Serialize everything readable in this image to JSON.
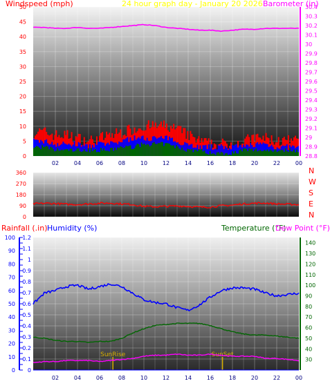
{
  "colors": {
    "wind_gust": "#ff0000",
    "wind_avg": "#0000ff",
    "wind_low": "#006600",
    "barometer": "#ff00ff",
    "wind_dir": "#ff0000",
    "humidity": "#0000ff",
    "temperature": "#006600",
    "dewpoint": "#ff00ff",
    "rainfall": "#0000ff",
    "sun": "#d8b000",
    "title": "#ffff00",
    "label_red": "#ff0000"
  },
  "chart_data": [
    {
      "type": "line",
      "title": "24 hour graph day - January 20 2026",
      "ylabel_left": "Windspeed (mph)",
      "ylabel_right": "Barometer (in)",
      "x_ticks": [
        "02",
        "04",
        "06",
        "08",
        "10",
        "12",
        "14",
        "16",
        "18",
        "20",
        "22",
        "00"
      ],
      "left_ticks": [
        "50",
        "45",
        "40",
        "35",
        "30",
        "25",
        "20",
        "15",
        "10",
        "5",
        "0"
      ],
      "right_ticks": [
        "30.4",
        "30.3",
        "30.2",
        "30.1",
        "30",
        "29.9",
        "29.8",
        "29.7",
        "29.6",
        "29.5",
        "29.4",
        "29.3",
        "29.2",
        "29.1",
        "29",
        "28.9",
        "28.8"
      ],
      "ylim_left": [
        0,
        50
      ],
      "ylim_right": [
        28.8,
        30.4
      ],
      "x": [
        0,
        1,
        2,
        3,
        4,
        5,
        6,
        7,
        8,
        9,
        10,
        11,
        12,
        13,
        14,
        15,
        16,
        17,
        18,
        19,
        20,
        21,
        22,
        23,
        24
      ],
      "series": [
        {
          "name": "Windspeed (mph)",
          "role": "gust",
          "values": [
            8,
            8,
            7,
            7,
            6,
            5,
            6,
            7,
            8,
            9,
            10,
            10,
            10,
            9,
            7,
            5,
            4,
            4,
            4,
            5,
            6,
            6,
            5,
            5,
            5
          ]
        },
        {
          "name": "Windspeed (mph)",
          "role": "avg",
          "values": [
            5,
            5,
            4,
            4,
            4,
            3,
            4,
            4,
            5,
            6,
            6,
            6,
            6,
            5,
            4,
            3,
            3,
            3,
            3,
            3,
            4,
            4,
            3,
            3,
            3
          ]
        },
        {
          "name": "Windspeed (mph)",
          "role": "low",
          "values": [
            3,
            3,
            2,
            2,
            2,
            2,
            2,
            2,
            3,
            3,
            4,
            4,
            4,
            3,
            2,
            2,
            1,
            1,
            1,
            2,
            2,
            2,
            2,
            2,
            2
          ]
        },
        {
          "name": "Barometer (in)",
          "values": [
            30.18,
            30.18,
            30.17,
            30.17,
            30.18,
            30.17,
            30.17,
            30.18,
            30.19,
            30.2,
            30.21,
            30.2,
            30.18,
            30.17,
            30.16,
            30.15,
            30.15,
            30.14,
            30.15,
            30.16,
            30.16,
            30.17,
            30.17,
            30.17,
            30.17
          ]
        }
      ]
    },
    {
      "type": "line",
      "ylabel_right": [
        "N",
        "W",
        "S",
        "E",
        "N"
      ],
      "left_ticks": [
        "360",
        "270",
        "180",
        "90",
        "0"
      ],
      "ylim": [
        0,
        360
      ],
      "x": [
        0,
        1,
        2,
        3,
        4,
        5,
        6,
        7,
        8,
        9,
        10,
        11,
        12,
        13,
        14,
        15,
        16,
        17,
        18,
        19,
        20,
        21,
        22,
        23,
        24
      ],
      "series": [
        {
          "name": "Wind direction",
          "values": [
            105,
            110,
            108,
            102,
            100,
            105,
            110,
            112,
            105,
            100,
            85,
            82,
            85,
            88,
            85,
            78,
            80,
            90,
            95,
            105,
            110,
            112,
            105,
            102,
            98
          ]
        }
      ]
    },
    {
      "type": "line",
      "ylabel_left_1": "Rainfall (.in)",
      "ylabel_left_2": "Humidity (%)",
      "ylabel_right_1": "Temperature (°F)",
      "ylabel_right_2": "Dew Point (°F)",
      "x_ticks": [
        "02",
        "04",
        "06",
        "08",
        "10",
        "12",
        "14",
        "16",
        "18",
        "20",
        "22",
        "00"
      ],
      "rain_ticks": [
        "1.2",
        "1.1",
        "1",
        "0.9",
        "0.8",
        "0.7",
        "0.6",
        "0.5",
        "0.4",
        "0.3",
        "0.2",
        "0.1",
        "0"
      ],
      "hum_ticks": [
        "100",
        "90",
        "80",
        "70",
        "60",
        "50",
        "40",
        "30",
        "20",
        "10",
        "0"
      ],
      "temp_ticks": [
        "140",
        "130",
        "120",
        "110",
        "100",
        "90",
        "80",
        "70",
        "60",
        "50",
        "40",
        "30"
      ],
      "ylim_rain": [
        0,
        1.2
      ],
      "ylim_hum": [
        0,
        100
      ],
      "ylim_temp": [
        20,
        145
      ],
      "annotations": [
        "SunRise",
        "SunSet"
      ],
      "sunrise_hour": 7.2,
      "sunset_hour": 17.1,
      "x": [
        0,
        1,
        2,
        3,
        4,
        5,
        6,
        7,
        8,
        9,
        10,
        11,
        12,
        13,
        14,
        15,
        16,
        17,
        18,
        19,
        20,
        21,
        22,
        23,
        24
      ],
      "series": [
        {
          "name": "Humidity (%)",
          "values": [
            50,
            58,
            60,
            63,
            64,
            61,
            63,
            65,
            63,
            58,
            53,
            51,
            50,
            47,
            45,
            49,
            55,
            60,
            62,
            62,
            61,
            58,
            56,
            57,
            58
          ]
        },
        {
          "name": "Temperature (°F)",
          "values": [
            51,
            50,
            48,
            47,
            47,
            46,
            47,
            47,
            50,
            55,
            59,
            62,
            63,
            64,
            64,
            64,
            62,
            59,
            56,
            54,
            53,
            53,
            52,
            51,
            50
          ]
        },
        {
          "name": "Dew Point (°F)",
          "values": [
            27,
            28,
            28,
            29,
            29,
            29,
            28,
            29,
            30,
            31,
            33,
            34,
            34,
            35,
            34,
            34,
            35,
            34,
            33,
            33,
            33,
            31,
            31,
            30,
            29
          ]
        },
        {
          "name": "Rainfall (.in)",
          "values": [
            0,
            0,
            0,
            0,
            0,
            0,
            0,
            0,
            0,
            0,
            0,
            0,
            0,
            0,
            0,
            0,
            0,
            0,
            0,
            0,
            0,
            0,
            0,
            0,
            0
          ]
        }
      ]
    }
  ]
}
